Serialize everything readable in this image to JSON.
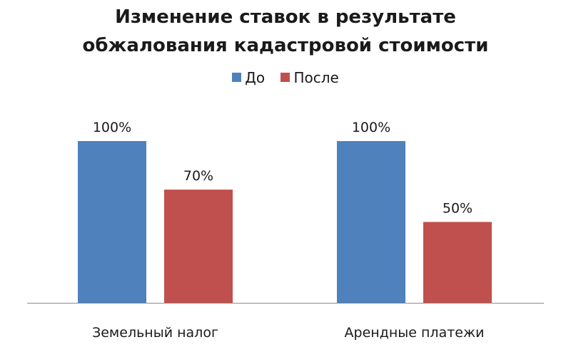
{
  "chart_data": {
    "type": "bar",
    "title_lines": [
      "Изменение ставок в результате",
      "обжалования кадастровой стоимости"
    ],
    "categories": [
      "Земельный налог",
      "Арендные платежи"
    ],
    "series": [
      {
        "name": "До",
        "color": "#4f81bd",
        "values": [
          100,
          100
        ],
        "labels": [
          "100%",
          "100%"
        ]
      },
      {
        "name": "После",
        "color": "#c0504d",
        "values": [
          70,
          50
        ],
        "labels": [
          "70%",
          "50%"
        ]
      }
    ],
    "ylim": [
      0,
      100
    ],
    "grid": false,
    "legend_position": "top-center"
  }
}
